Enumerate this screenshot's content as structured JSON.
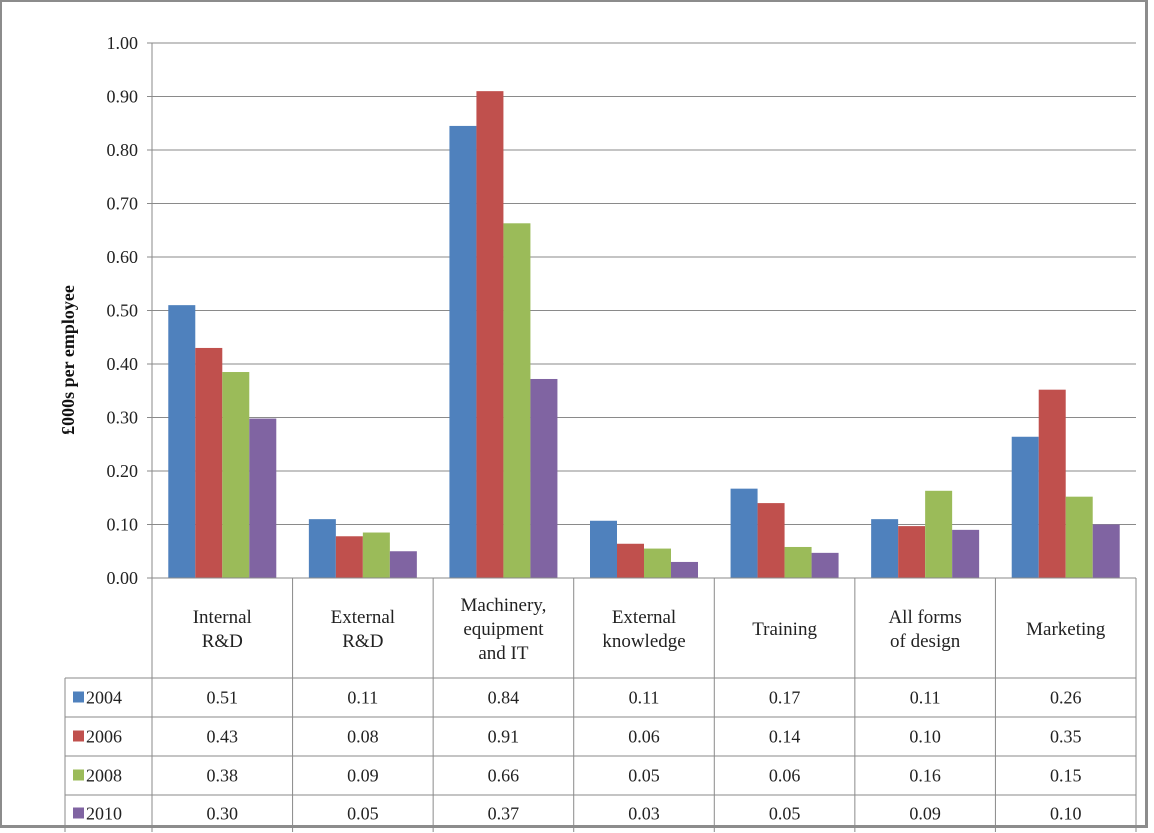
{
  "chart_data": {
    "type": "bar",
    "ylabel": "£000s per employee",
    "ylim": [
      0,
      1.0
    ],
    "yticks": [
      "0.00",
      "0.10",
      "0.20",
      "0.30",
      "0.40",
      "0.50",
      "0.60",
      "0.70",
      "0.80",
      "0.90",
      "1.00"
    ],
    "grid": true,
    "categories": [
      [
        "Internal",
        "R&D"
      ],
      [
        "External",
        "R&D"
      ],
      [
        "Machinery,",
        "equipment",
        "and IT"
      ],
      [
        "External",
        "knowledge"
      ],
      [
        "Training"
      ],
      [
        "All forms",
        "of design"
      ],
      [
        "Marketing"
      ]
    ],
    "series": [
      {
        "name": "2004",
        "color": "#4f81bd",
        "values": [
          0.51,
          0.11,
          0.845,
          0.107,
          0.167,
          0.11,
          0.264
        ],
        "labels": [
          "0.51",
          "0.11",
          "0.84",
          "0.11",
          "0.17",
          "0.11",
          "0.26"
        ]
      },
      {
        "name": "2006",
        "color": "#c0504d",
        "values": [
          0.43,
          0.078,
          0.91,
          0.064,
          0.14,
          0.097,
          0.352
        ],
        "labels": [
          "0.43",
          "0.08",
          "0.91",
          "0.06",
          "0.14",
          "0.10",
          "0.35"
        ]
      },
      {
        "name": "2008",
        "color": "#9bbb59",
        "values": [
          0.385,
          0.085,
          0.663,
          0.055,
          0.058,
          0.163,
          0.152
        ],
        "labels": [
          "0.38",
          "0.09",
          "0.66",
          "0.05",
          "0.06",
          "0.16",
          "0.15"
        ]
      },
      {
        "name": "2010",
        "color": "#8064a2",
        "values": [
          0.298,
          0.05,
          0.372,
          0.03,
          0.047,
          0.09,
          0.1
        ],
        "labels": [
          "0.30",
          "0.05",
          "0.37",
          "0.03",
          "0.05",
          "0.09",
          "0.10"
        ]
      }
    ]
  }
}
